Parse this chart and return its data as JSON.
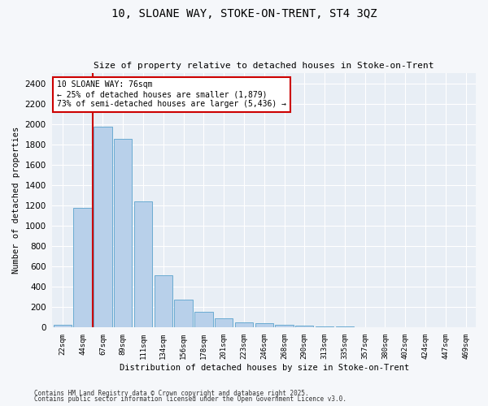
{
  "title_line1": "10, SLOANE WAY, STOKE-ON-TRENT, ST4 3QZ",
  "title_line2": "Size of property relative to detached houses in Stoke-on-Trent",
  "xlabel": "Distribution of detached houses by size in Stoke-on-Trent",
  "ylabel": "Number of detached properties",
  "categories": [
    "22sqm",
    "44sqm",
    "67sqm",
    "89sqm",
    "111sqm",
    "134sqm",
    "156sqm",
    "178sqm",
    "201sqm",
    "223sqm",
    "246sqm",
    "268sqm",
    "290sqm",
    "313sqm",
    "335sqm",
    "357sqm",
    "380sqm",
    "402sqm",
    "424sqm",
    "447sqm",
    "469sqm"
  ],
  "values": [
    30,
    1175,
    1975,
    1855,
    1240,
    515,
    275,
    155,
    90,
    50,
    40,
    30,
    20,
    15,
    10,
    5,
    5,
    5,
    5,
    5,
    5
  ],
  "bar_color": "#b8d0ea",
  "bar_edge_color": "#6aabd2",
  "vline_color": "#cc0000",
  "annotation_line1": "10 SLOANE WAY: 76sqm",
  "annotation_line2": "← 25% of detached houses are smaller (1,879)",
  "annotation_line3": "73% of semi-detached houses are larger (5,436) →",
  "annotation_box_color": "#ffffff",
  "annotation_box_edge": "#cc0000",
  "ylim_max": 2500,
  "yticks": [
    0,
    200,
    400,
    600,
    800,
    1000,
    1200,
    1400,
    1600,
    1800,
    2000,
    2200,
    2400
  ],
  "bg_color": "#e8eef5",
  "grid_color": "#ffffff",
  "fig_bg_color": "#f5f7fa",
  "footer_line1": "Contains HM Land Registry data © Crown copyright and database right 2025.",
  "footer_line2": "Contains public sector information licensed under the Open Government Licence v3.0."
}
